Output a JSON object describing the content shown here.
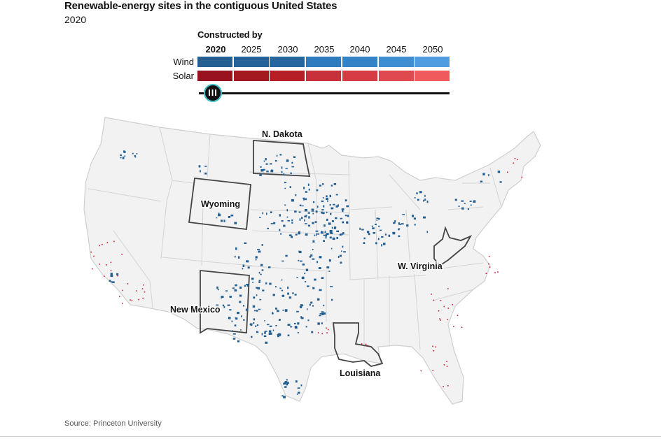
{
  "header": {
    "title": "Renewable-energy sites in the contiguous United States",
    "subtitle": "2020"
  },
  "legend": {
    "heading": "Constructed by",
    "years": [
      "2020",
      "2025",
      "2030",
      "2035",
      "2040",
      "2045",
      "2050"
    ],
    "selected_year": "2020",
    "rows": [
      {
        "label": "Wind",
        "colors": [
          "#235f93",
          "#246299",
          "#26679f",
          "#2f7bbf",
          "#3583c7",
          "#3d8ed2",
          "#4f9de0"
        ]
      },
      {
        "label": "Solar",
        "colors": [
          "#981220",
          "#a3191f",
          "#b71f27",
          "#c8303a",
          "#d63c43",
          "#e04a4e",
          "#f05a5c"
        ]
      }
    ],
    "slider": {
      "value": "2020",
      "knob_glyph": "III",
      "knob_color": "#121212",
      "ring_color": "#3fc1c9"
    }
  },
  "map": {
    "highlighted_states": [
      "N. Dakota",
      "Wyoming",
      "New Mexico",
      "W. Virginia",
      "Louisiana"
    ],
    "labels": {
      "n_dakota": "N. Dakota",
      "wyoming": "Wyoming",
      "new_mexico": "New Mexico",
      "w_virginia": "W. Virginia",
      "louisiana": "Louisiana"
    },
    "colors": {
      "land": "#f2f2f2",
      "borders": "#cccccc",
      "highlight_border": "#444444",
      "wind_sites": "#235f93",
      "solar_sites": "#c8202e"
    }
  },
  "footer": {
    "source": "Source: Princeton University"
  }
}
